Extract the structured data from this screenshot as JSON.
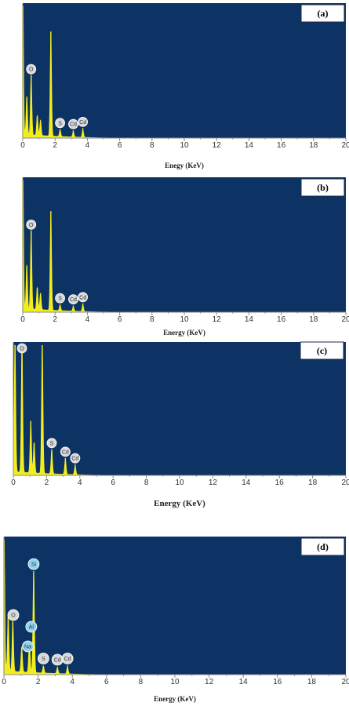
{
  "chart_data": [
    {
      "type": "area",
      "panel_label": "(a)",
      "xlabel": "Enegy (KeV)",
      "xlim": [
        0,
        20
      ],
      "x_ticks": [
        "0",
        "2",
        "4",
        "6",
        "8",
        "10",
        "12",
        "14",
        "16",
        "18",
        "20"
      ],
      "peaks": [
        {
          "x": 0.0,
          "height": 1.45
        },
        {
          "x": 0.25,
          "height": 0.35
        },
        {
          "x": 0.52,
          "height": 0.55
        },
        {
          "x": 0.9,
          "height": 0.18
        },
        {
          "x": 1.1,
          "height": 0.14
        },
        {
          "x": 1.74,
          "height": 0.95
        },
        {
          "x": 2.31,
          "height": 0.06
        },
        {
          "x": 3.13,
          "height": 0.05
        },
        {
          "x": 3.72,
          "height": 0.07
        }
      ],
      "elements": [
        {
          "symbol": "O",
          "x": 0.52
        },
        {
          "symbol": "S",
          "x": 2.31
        },
        {
          "symbol": "Cd",
          "x": 3.13
        },
        {
          "symbol": "Cd",
          "x": 3.72
        }
      ]
    },
    {
      "type": "area",
      "panel_label": "(b)",
      "xlabel": "Energy (KeV)",
      "xlim": [
        0,
        20
      ],
      "x_ticks": [
        "0",
        "2",
        "4",
        "6",
        "8",
        "10",
        "12",
        "14",
        "16",
        "18",
        "20"
      ],
      "peaks": [
        {
          "x": 0.0,
          "height": 1.45
        },
        {
          "x": 0.25,
          "height": 0.4
        },
        {
          "x": 0.52,
          "height": 0.72
        },
        {
          "x": 0.9,
          "height": 0.2
        },
        {
          "x": 1.1,
          "height": 0.15
        },
        {
          "x": 1.74,
          "height": 0.9
        },
        {
          "x": 2.31,
          "height": 0.05
        },
        {
          "x": 3.13,
          "height": 0.04
        },
        {
          "x": 3.72,
          "height": 0.06
        }
      ],
      "elements": [
        {
          "symbol": "O",
          "x": 0.52
        },
        {
          "symbol": "S",
          "x": 2.31
        },
        {
          "symbol": "Cd",
          "x": 3.13
        },
        {
          "symbol": "Cd",
          "x": 3.72
        }
      ]
    },
    {
      "type": "area",
      "panel_label": "(c)",
      "xlabel": "Energy (KeV)",
      "xlim": [
        0,
        20
      ],
      "x_ticks": [
        "0",
        "2",
        "4",
        "6",
        "8",
        "10",
        "12",
        "14",
        "16",
        "18",
        "20"
      ],
      "peaks": [
        {
          "x": 0.1,
          "height": 1.2
        },
        {
          "x": 0.52,
          "height": 1.2
        },
        {
          "x": 1.05,
          "height": 0.48
        },
        {
          "x": 1.25,
          "height": 0.28
        },
        {
          "x": 1.74,
          "height": 1.2
        },
        {
          "x": 2.31,
          "height": 0.22
        },
        {
          "x": 3.13,
          "height": 0.14
        },
        {
          "x": 3.72,
          "height": 0.08
        }
      ],
      "elements": [
        {
          "symbol": "O",
          "x": 0.52
        },
        {
          "symbol": "S",
          "x": 2.31
        },
        {
          "symbol": "Cd",
          "x": 3.13
        },
        {
          "symbol": "Cd",
          "x": 3.72
        }
      ]
    },
    {
      "type": "area",
      "panel_label": "(d)",
      "xlabel": "Energy (KeV)",
      "xlim": [
        0,
        20
      ],
      "x_ticks": [
        "0",
        "2",
        "4",
        "6",
        "8",
        "10",
        "12",
        "14",
        "16",
        "18",
        "20"
      ],
      "peaks": [
        {
          "x": 0.0,
          "height": 1.5
        },
        {
          "x": 0.25,
          "height": 0.5
        },
        {
          "x": 0.52,
          "height": 0.45
        },
        {
          "x": 1.04,
          "height": 0.22
        },
        {
          "x": 1.49,
          "height": 0.28
        },
        {
          "x": 1.74,
          "height": 0.9
        },
        {
          "x": 2.31,
          "height": 0.06
        },
        {
          "x": 3.13,
          "height": 0.05
        },
        {
          "x": 3.72,
          "height": 0.06
        }
      ],
      "elements": [
        {
          "symbol": "Si",
          "x": 1.74,
          "highlight": true
        },
        {
          "symbol": "O",
          "x": 0.52
        },
        {
          "symbol": "Al",
          "x": 1.49,
          "highlight": true
        },
        {
          "symbol": "Na",
          "x": 1.04,
          "highlight": true
        },
        {
          "symbol": "S",
          "x": 2.31
        },
        {
          "symbol": "Cd",
          "x": 3.13
        },
        {
          "symbol": "Cd",
          "x": 3.72
        }
      ]
    }
  ],
  "colors": {
    "plot_background": "#0d3264",
    "spectrum": "#f2ee1e",
    "marker_fill": "#d9d9d9",
    "marker_highlight": "#8fd4ee",
    "axis": "#8a8a8a"
  }
}
